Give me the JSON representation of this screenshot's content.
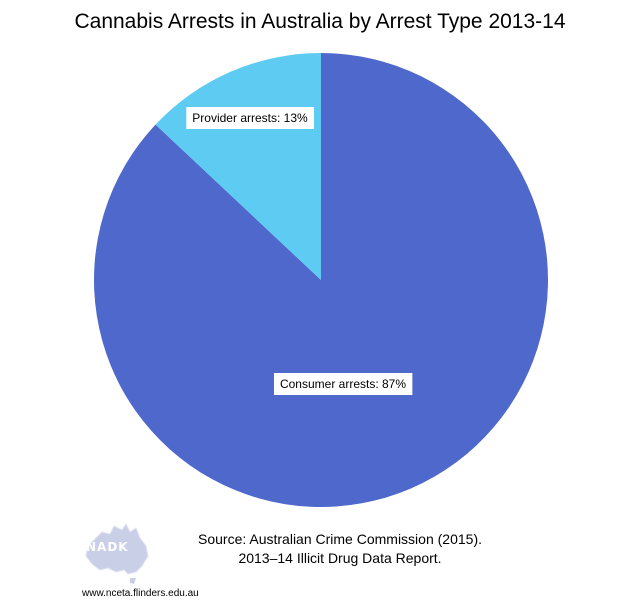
{
  "chart_data": {
    "type": "pie",
    "title": "Cannabis Arrests in Australia by Arrest Type 2013-14",
    "slices": [
      {
        "label": "Consumer arrests: 87%",
        "value": 87,
        "color": "#4F68CC"
      },
      {
        "label": "Provider arrests: 13%",
        "value": 13,
        "color": "#5ECBF2"
      }
    ],
    "start_angle": "12 o'clock",
    "direction": "clockwise"
  },
  "source": {
    "line1": "Source: Australian Crime Commission (2015).",
    "line2": "2013–14 Illicit Drug Data Report."
  },
  "logo": {
    "text": "NADK",
    "name": "nadk-australia-logo-icon",
    "color": "#c9cfe6"
  },
  "footer": {
    "url": "www.nceta.flinders.edu.au"
  }
}
